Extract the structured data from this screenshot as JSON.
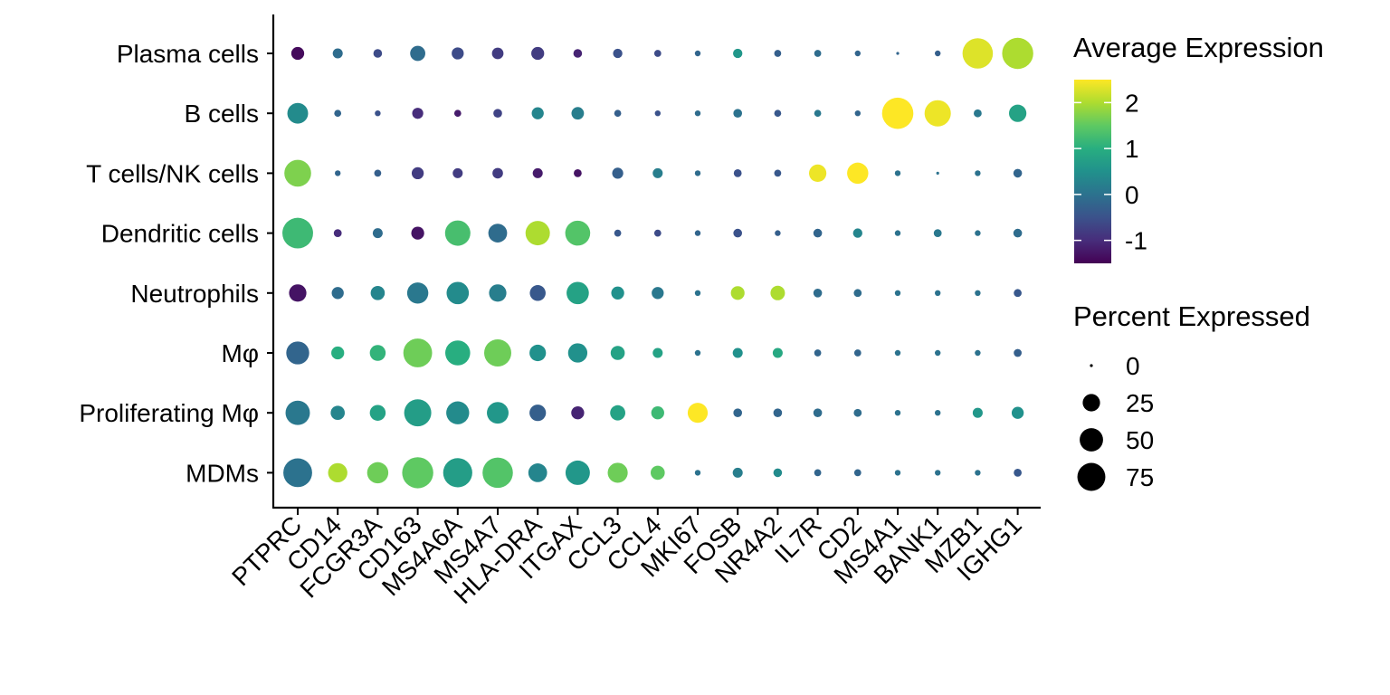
{
  "chart_data": {
    "type": "dot",
    "genes": [
      "PTPRC",
      "CD14",
      "FCGR3A",
      "CD163",
      "MS4A6A",
      "MS4A7",
      "HLA-DRA",
      "ITGAX",
      "CCL3",
      "CCL4",
      "MKI67",
      "FOSB",
      "NR4A2",
      "IL7R",
      "CD2",
      "MS4A1",
      "BANK1",
      "MZB1",
      "IGHG1"
    ],
    "cell_types": [
      "Plasma cells",
      "B cells",
      "T cells/NK cells",
      "Dendritic cells",
      "Neutrophils",
      "Mφ",
      "Proliferating Mφ",
      "MDMs"
    ],
    "avg_expression": [
      [
        -1.4,
        -0.1,
        -0.6,
        -0.1,
        -0.6,
        -0.8,
        -0.8,
        -1.1,
        -0.5,
        -0.6,
        -0.2,
        0.6,
        -0.3,
        -0.1,
        -0.2,
        -0.2,
        -0.3,
        2.3,
        2.0
      ],
      [
        0.4,
        -0.2,
        -0.5,
        -1.0,
        -1.2,
        -0.7,
        0.3,
        0.2,
        -0.3,
        -0.5,
        -0.1,
        0.0,
        -0.4,
        0.1,
        -0.2,
        2.5,
        2.4,
        0.1,
        0.8
      ],
      [
        1.7,
        -0.2,
        -0.3,
        -0.8,
        -0.8,
        -0.8,
        -1.2,
        -1.3,
        -0.3,
        0.2,
        -0.1,
        -0.5,
        -0.4,
        2.4,
        2.5,
        0.0,
        0.0,
        0.0,
        -0.2
      ],
      [
        1.2,
        -1.0,
        -0.1,
        -1.3,
        1.3,
        -0.1,
        2.0,
        1.4,
        -0.4,
        -0.6,
        -0.2,
        -0.5,
        -0.3,
        -0.2,
        0.3,
        0.0,
        0.1,
        0.0,
        -0.1
      ],
      [
        -1.3,
        -0.1,
        0.3,
        0.1,
        0.4,
        0.2,
        -0.4,
        0.8,
        0.5,
        0.1,
        0.0,
        2.0,
        2.0,
        -0.1,
        -0.1,
        0.0,
        0.0,
        0.0,
        -0.4
      ],
      [
        -0.2,
        1.0,
        1.1,
        1.6,
        1.0,
        1.6,
        0.5,
        0.5,
        0.8,
        0.8,
        0.0,
        0.5,
        0.9,
        -0.2,
        -0.2,
        0.0,
        0.0,
        0.0,
        -0.3
      ],
      [
        0.1,
        0.3,
        0.8,
        0.7,
        0.4,
        0.6,
        -0.3,
        -1.1,
        0.8,
        1.2,
        2.5,
        -0.2,
        -0.2,
        -0.1,
        -0.1,
        0.0,
        0.0,
        0.6,
        0.5
      ],
      [
        0.0,
        2.0,
        1.6,
        1.5,
        0.7,
        1.4,
        0.3,
        0.6,
        1.6,
        1.5,
        0.0,
        0.2,
        0.4,
        -0.2,
        -0.2,
        0.0,
        0.0,
        0.0,
        -0.4
      ]
    ],
    "pct_expressed": [
      [
        12,
        6,
        4,
        18,
        10,
        9,
        12,
        4,
        5,
        2,
        1,
        5,
        2,
        2,
        1,
        0,
        1,
        90,
        95
      ],
      [
        38,
        2,
        1,
        8,
        2,
        4,
        10,
        11,
        2,
        1,
        1,
        4,
        2,
        2,
        1,
        96,
        65,
        3,
        25
      ],
      [
        68,
        1,
        2,
        10,
        6,
        7,
        6,
        3,
        8,
        6,
        1,
        3,
        2,
        25,
        40,
        1,
        0,
        1,
        4
      ],
      [
        92,
        3,
        6,
        12,
        60,
        30,
        55,
        58,
        2,
        2,
        1,
        4,
        1,
        4,
        5,
        1,
        3,
        1,
        4
      ],
      [
        25,
        10,
        15,
        40,
        45,
        25,
        20,
        45,
        12,
        10,
        1,
        14,
        16,
        4,
        3,
        1,
        1,
        1,
        3
      ],
      [
        48,
        12,
        20,
        80,
        58,
        70,
        22,
        32,
        15,
        6,
        1,
        6,
        6,
        2,
        2,
        1,
        1,
        1,
        3
      ],
      [
        55,
        15,
        20,
        70,
        48,
        42,
        22,
        12,
        18,
        12,
        35,
        4,
        4,
        4,
        3,
        1,
        1,
        6,
        10
      ],
      [
        80,
        32,
        40,
        95,
        82,
        90,
        30,
        55,
        35,
        15,
        1,
        6,
        4,
        2,
        2,
        1,
        1,
        1,
        3
      ]
    ],
    "color_scale": {
      "title": "Average Expression",
      "ticks": [
        2,
        1,
        0,
        -1
      ],
      "tick_labels": [
        "2",
        "1",
        "0",
        "-1"
      ],
      "range": [
        -1.5,
        2.5
      ],
      "palette": "viridis"
    },
    "size_scale": {
      "title": "Percent Expressed",
      "values": [
        0,
        25,
        50,
        75
      ],
      "labels": [
        "0",
        "25",
        "50",
        "75"
      ]
    },
    "legend_position": "right"
  }
}
